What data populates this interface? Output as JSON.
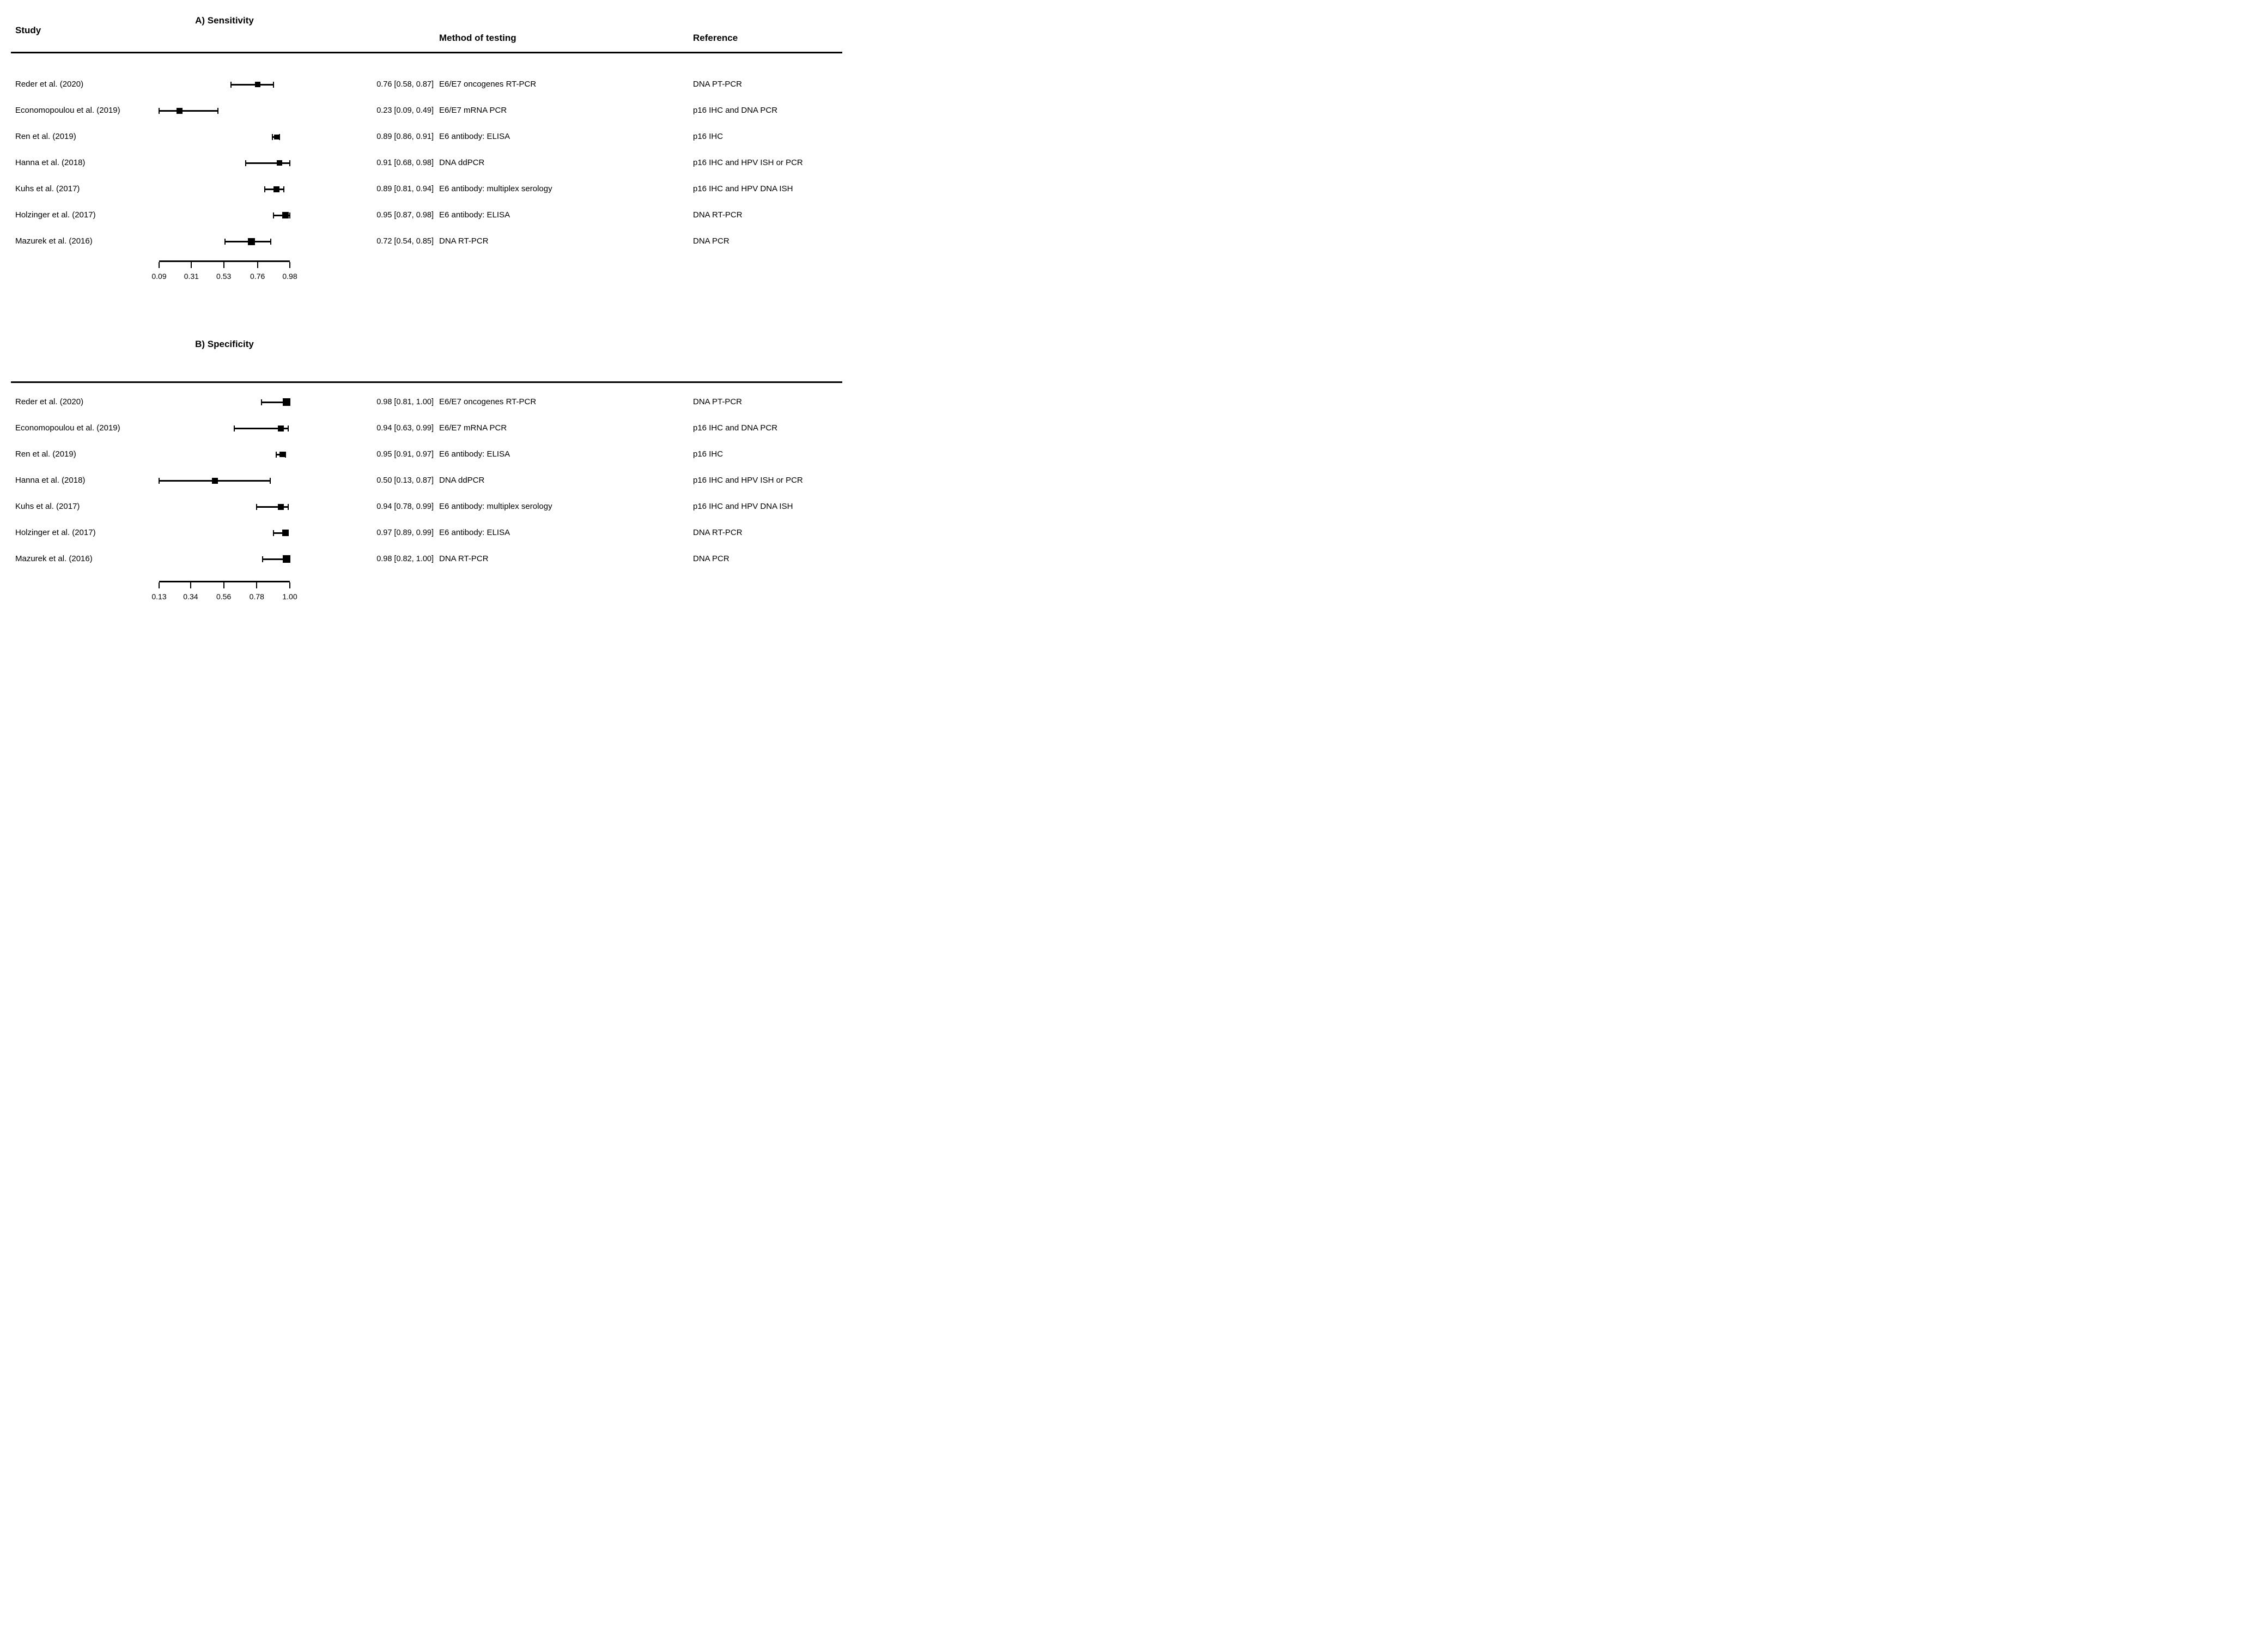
{
  "header": {
    "study_label": "Study",
    "method_label": "Method of testing",
    "reference_label": "Reference"
  },
  "panels": [
    {
      "id": "A",
      "title": "A) Sensitivity",
      "axis": {
        "min": 0.09,
        "max": 0.98,
        "ticks": [
          "0.09",
          "0.31",
          "0.53",
          "0.76",
          "0.98"
        ]
      },
      "rows": [
        {
          "study": "Reder et al. (2020)",
          "estimate_label": "0.76 [0.58, 0.87]",
          "estimate": 0.76,
          "ci_low": 0.58,
          "ci_high": 0.87,
          "marker_px": 10,
          "method": "E6/E7 oncogenes RT-PCR",
          "reference": "DNA PT-PCR"
        },
        {
          "study": "Economopoulou et al. (2019)",
          "estimate_label": "0.23 [0.09, 0.49]",
          "estimate": 0.23,
          "ci_low": 0.09,
          "ci_high": 0.49,
          "marker_px": 11,
          "method": "E6/E7 mRNA PCR",
          "reference": "p16 IHC and DNA PCR"
        },
        {
          "study": "Ren et al. (2019)",
          "estimate_label": "0.89 [0.86, 0.91]",
          "estimate": 0.89,
          "ci_low": 0.86,
          "ci_high": 0.91,
          "marker_px": 9,
          "method": "E6 antibody: ELISA",
          "reference": "p16 IHC"
        },
        {
          "study": "Hanna et al. (2018)",
          "estimate_label": "0.91 [0.68, 0.98]",
          "estimate": 0.91,
          "ci_low": 0.68,
          "ci_high": 0.98,
          "marker_px": 10,
          "method": "DNA ddPCR",
          "reference": "p16 IHC and HPV ISH or PCR"
        },
        {
          "study": "Kuhs et al. (2017)",
          "estimate_label": "0.89 [0.81, 0.94]",
          "estimate": 0.89,
          "ci_low": 0.81,
          "ci_high": 0.94,
          "marker_px": 11,
          "method": "E6 antibody: multiplex serology",
          "reference": "p16 IHC and HPV DNA ISH"
        },
        {
          "study": "Holzinger et al. (2017)",
          "estimate_label": "0.95 [0.87, 0.98]",
          "estimate": 0.95,
          "ci_low": 0.87,
          "ci_high": 0.98,
          "marker_px": 12,
          "method": "E6 antibody: ELISA",
          "reference": "DNA RT-PCR"
        },
        {
          "study": "Mazurek et al. (2016)",
          "estimate_label": "0.72 [0.54, 0.85]",
          "estimate": 0.72,
          "ci_low": 0.54,
          "ci_high": 0.85,
          "marker_px": 13,
          "method": "DNA RT-PCR",
          "reference": "DNA PCR"
        }
      ]
    },
    {
      "id": "B",
      "title": "B) Specificity",
      "axis": {
        "min": 0.13,
        "max": 1.0,
        "ticks": [
          "0.13",
          "0.34",
          "0.56",
          "0.78",
          "1.00"
        ]
      },
      "rows": [
        {
          "study": "Reder et al. (2020)",
          "estimate_label": "0.98 [0.81, 1.00]",
          "estimate": 0.98,
          "ci_low": 0.81,
          "ci_high": 1.0,
          "marker_px": 14,
          "method": "E6/E7 oncogenes RT-PCR",
          "reference": "DNA PT-PCR"
        },
        {
          "study": "Economopoulou et al. (2019)",
          "estimate_label": "0.94 [0.63, 0.99]",
          "estimate": 0.94,
          "ci_low": 0.63,
          "ci_high": 0.99,
          "marker_px": 11,
          "method": "E6/E7 mRNA PCR",
          "reference": "p16 IHC and DNA PCR"
        },
        {
          "study": "Ren et al. (2019)",
          "estimate_label": "0.95 [0.91, 0.97]",
          "estimate": 0.95,
          "ci_low": 0.91,
          "ci_high": 0.97,
          "marker_px": 10,
          "method": "E6 antibody: ELISA",
          "reference": "p16 IHC"
        },
        {
          "study": "Hanna et al. (2018)",
          "estimate_label": "0.50 [0.13, 0.87]",
          "estimate": 0.5,
          "ci_low": 0.13,
          "ci_high": 0.87,
          "marker_px": 11,
          "method": "DNA ddPCR",
          "reference": "p16 IHC and HPV ISH or PCR"
        },
        {
          "study": "Kuhs et al. (2017)",
          "estimate_label": "0.94 [0.78, 0.99]",
          "estimate": 0.94,
          "ci_low": 0.78,
          "ci_high": 0.99,
          "marker_px": 11,
          "method": "E6 antibody: multiplex serology",
          "reference": "p16 IHC and HPV DNA ISH"
        },
        {
          "study": "Holzinger et al. (2017)",
          "estimate_label": "0.97 [0.89, 0.99]",
          "estimate": 0.97,
          "ci_low": 0.89,
          "ci_high": 0.99,
          "marker_px": 12,
          "method": "E6 antibody: ELISA",
          "reference": "DNA RT-PCR"
        },
        {
          "study": "Mazurek et al. (2016)",
          "estimate_label": "0.98 [0.82, 1.00]",
          "estimate": 0.98,
          "ci_low": 0.82,
          "ci_high": 1.0,
          "marker_px": 14,
          "method": "DNA RT-PCR",
          "reference": "DNA PCR"
        }
      ]
    }
  ],
  "chart_data": [
    {
      "type": "scatter",
      "subtype": "forest-plot",
      "title": "A) Sensitivity",
      "categories": [
        "Reder et al. (2020)",
        "Economopoulou et al. (2019)",
        "Ren et al. (2019)",
        "Hanna et al. (2018)",
        "Kuhs et al. (2017)",
        "Holzinger et al. (2017)",
        "Mazurek et al. (2016)"
      ],
      "series": [
        {
          "name": "estimate",
          "values": [
            0.76,
            0.23,
            0.89,
            0.91,
            0.89,
            0.95,
            0.72
          ]
        },
        {
          "name": "ci_lower",
          "values": [
            0.58,
            0.09,
            0.86,
            0.68,
            0.81,
            0.87,
            0.54
          ]
        },
        {
          "name": "ci_upper",
          "values": [
            0.87,
            0.49,
            0.91,
            0.98,
            0.94,
            0.98,
            0.85
          ]
        }
      ],
      "estimate_labels": [
        "0.76 [0.58, 0.87]",
        "0.23 [0.09, 0.49]",
        "0.89 [0.86, 0.91]",
        "0.91 [0.68, 0.98]",
        "0.89 [0.81, 0.94]",
        "0.95 [0.87, 0.98]",
        "0.72 [0.54, 0.85]"
      ],
      "methods": [
        "E6/E7 oncogenes RT-PCR",
        "E6/E7 mRNA PCR",
        "E6 antibody: ELISA",
        "DNA ddPCR",
        "E6 antibody: multiplex serology",
        "E6 antibody: ELISA",
        "DNA RT-PCR"
      ],
      "references": [
        "DNA PT-PCR",
        "p16 IHC and DNA PCR",
        "p16 IHC",
        "p16 IHC and HPV ISH or PCR",
        "p16 IHC and HPV DNA ISH",
        "DNA RT-PCR",
        "DNA PCR"
      ],
      "xlabel": "",
      "ylabel": "",
      "xlim": [
        0.09,
        0.98
      ],
      "x_ticks": [
        0.09,
        0.31,
        0.53,
        0.76,
        0.98
      ],
      "grid": false,
      "legend": false
    },
    {
      "type": "scatter",
      "subtype": "forest-plot",
      "title": "B) Specificity",
      "categories": [
        "Reder et al. (2020)",
        "Economopoulou et al. (2019)",
        "Ren et al. (2019)",
        "Hanna et al. (2018)",
        "Kuhs et al. (2017)",
        "Holzinger et al. (2017)",
        "Mazurek et al. (2016)"
      ],
      "series": [
        {
          "name": "estimate",
          "values": [
            0.98,
            0.94,
            0.95,
            0.5,
            0.94,
            0.97,
            0.98
          ]
        },
        {
          "name": "ci_lower",
          "values": [
            0.81,
            0.63,
            0.91,
            0.13,
            0.78,
            0.89,
            0.82
          ]
        },
        {
          "name": "ci_upper",
          "values": [
            1.0,
            0.99,
            0.97,
            0.87,
            0.99,
            0.99,
            1.0
          ]
        }
      ],
      "estimate_labels": [
        "0.98 [0.81, 1.00]",
        "0.94 [0.63, 0.99]",
        "0.95 [0.91, 0.97]",
        "0.50 [0.13, 0.87]",
        "0.94 [0.78, 0.99]",
        "0.97 [0.89, 0.99]",
        "0.98 [0.82, 1.00]"
      ],
      "methods": [
        "E6/E7 oncogenes RT-PCR",
        "E6/E7 mRNA PCR",
        "E6 antibody: ELISA",
        "DNA ddPCR",
        "E6 antibody: multiplex serology",
        "E6 antibody: ELISA",
        "DNA RT-PCR"
      ],
      "references": [
        "DNA PT-PCR",
        "p16 IHC and DNA PCR",
        "p16 IHC",
        "p16 IHC and HPV ISH or PCR",
        "p16 IHC and HPV DNA ISH",
        "DNA RT-PCR",
        "DNA PCR"
      ],
      "xlabel": "",
      "ylabel": "",
      "xlim": [
        0.13,
        1.0
      ],
      "x_ticks": [
        0.13,
        0.34,
        0.56,
        0.78,
        1.0
      ],
      "grid": false,
      "legend": false
    }
  ]
}
